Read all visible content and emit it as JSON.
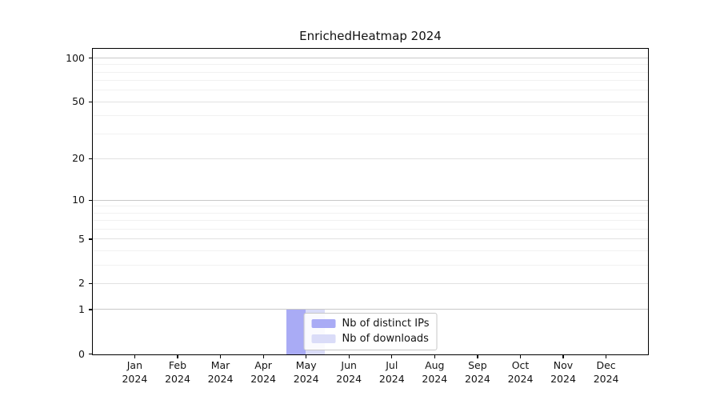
{
  "chart_data": {
    "type": "bar",
    "title": "EnrichedHeatmap 2024",
    "categories": [
      "Jan",
      "Feb",
      "Mar",
      "Apr",
      "May",
      "Jun",
      "Jul",
      "Aug",
      "Sep",
      "Oct",
      "Nov",
      "Dec"
    ],
    "year": "2024",
    "series": [
      {
        "name": "Nb of distinct IPs",
        "color": "#a9abf5",
        "values": [
          0,
          0,
          0,
          0,
          1,
          0,
          0,
          0,
          0,
          0,
          0,
          0
        ]
      },
      {
        "name": "Nb of downloads",
        "color": "#dadcf8",
        "values": [
          0,
          0,
          0,
          0,
          1,
          0,
          0,
          0,
          0,
          0,
          0,
          0
        ]
      }
    ],
    "yscale": "log1p",
    "ylim": [
      0,
      114
    ],
    "yticks": [
      0,
      1,
      2,
      5,
      10,
      20,
      50,
      100
    ],
    "yticks_decade": [
      1,
      10,
      100
    ],
    "yticks_minor": [
      3,
      4,
      6,
      7,
      8,
      9,
      30,
      40,
      60,
      70,
      80,
      90
    ],
    "grid": "on",
    "legend_position": "lower center"
  },
  "colors": {
    "grid_decade": "#c9c9c9",
    "grid_major": "#e2e2e2",
    "grid_minor": "#f1f1f1",
    "spine": "#000000",
    "text": "#141414",
    "legend_border": "#c8c8c8"
  }
}
